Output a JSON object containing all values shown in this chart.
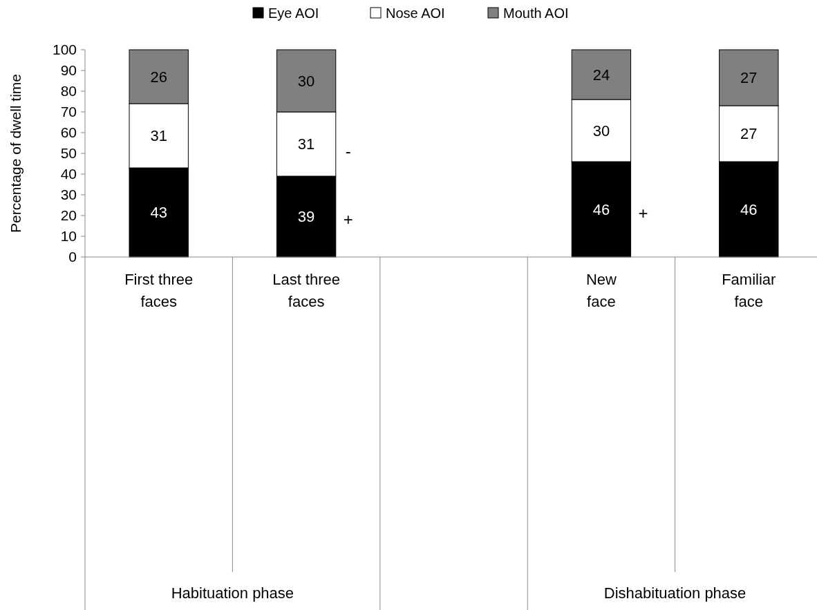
{
  "chart_data": {
    "type": "bar",
    "stacked": true,
    "ylabel": "Percentage of dwell time",
    "categories": [
      "First three faces",
      "Last three faces",
      null,
      "New face",
      "Familiar face"
    ],
    "series": [
      {
        "name": "Eye AOI",
        "color": "#000000",
        "values": [
          43,
          39,
          null,
          46,
          46
        ]
      },
      {
        "name": "Nose AOI",
        "color": "#ffffff",
        "values": [
          31,
          31,
          null,
          30,
          27
        ]
      },
      {
        "name": "Mouth AOI",
        "color": "#808080",
        "values": [
          26,
          30,
          null,
          24,
          27
        ]
      }
    ],
    "ylim": [
      0,
      100
    ],
    "yticks": [
      0,
      10,
      20,
      30,
      40,
      50,
      60,
      70,
      80,
      90,
      100
    ],
    "data_labels": true,
    "legend": "top",
    "grid": false,
    "annotations": [
      "Habituation phase",
      "Dishabituation phase",
      "+",
      "-",
      "+"
    ]
  }
}
